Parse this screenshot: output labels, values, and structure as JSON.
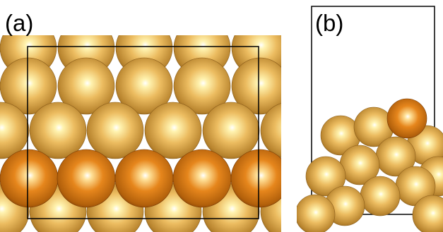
{
  "panels": [
    {
      "id": "a",
      "label": "(a)"
    },
    {
      "id": "b",
      "label": "(b)"
    }
  ],
  "colors": {
    "atom_gold_light": "#fff7c0",
    "atom_gold_mid": "#e8b250",
    "atom_gold_edge": "#93641a",
    "atom_orange_light": "#ffe6a0",
    "atom_orange_mid": "#e27f14",
    "atom_orange_edge": "#8a4305",
    "cell_outline": "#000000",
    "background": "#ffffff"
  }
}
